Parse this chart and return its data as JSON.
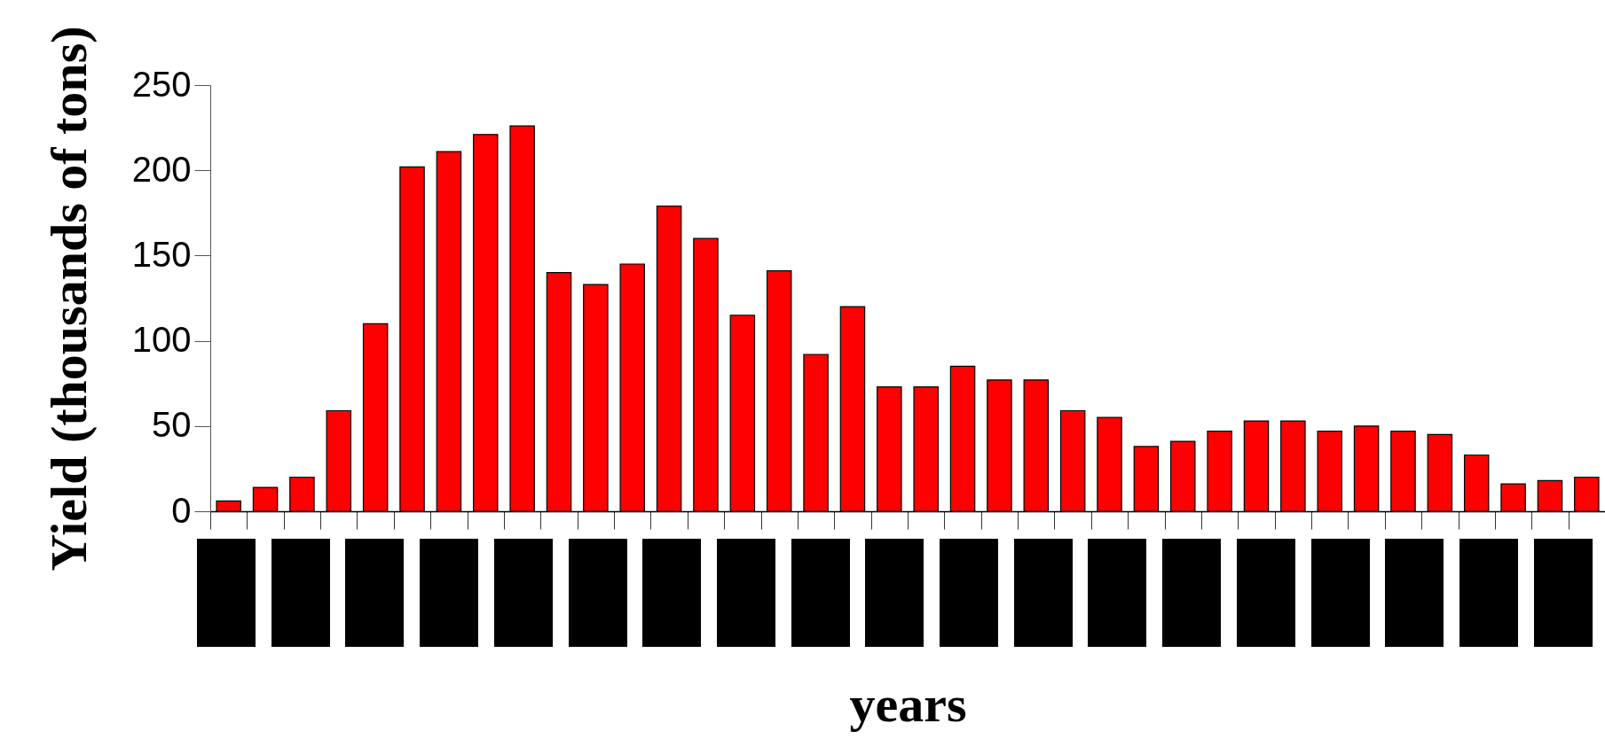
{
  "chart_data": {
    "type": "bar",
    "xlabel": "years",
    "ylabel": "Yield (thousands of tons)",
    "categories": [
      null,
      null,
      null,
      null,
      null,
      null,
      null,
      null,
      null,
      null,
      null,
      null,
      null,
      null,
      null,
      null,
      null,
      null,
      null,
      null,
      null,
      null,
      null,
      null,
      null,
      null,
      null,
      null,
      null,
      null,
      null,
      null,
      null,
      null,
      null,
      null,
      null,
      null
    ],
    "values": [
      6,
      14,
      20,
      59,
      110,
      202,
      211,
      221,
      226,
      140,
      133,
      145,
      179,
      160,
      115,
      141,
      92,
      120,
      73,
      73,
      85,
      77,
      77,
      59,
      55,
      38,
      41,
      47,
      53,
      53,
      47,
      50,
      47,
      45,
      33,
      16,
      18,
      20
    ],
    "color": "#ff0000",
    "ylim": [
      0,
      250
    ],
    "yticks": [
      0,
      50,
      100,
      150,
      200,
      250
    ],
    "grid": false,
    "tick_labels": "y"
  }
}
